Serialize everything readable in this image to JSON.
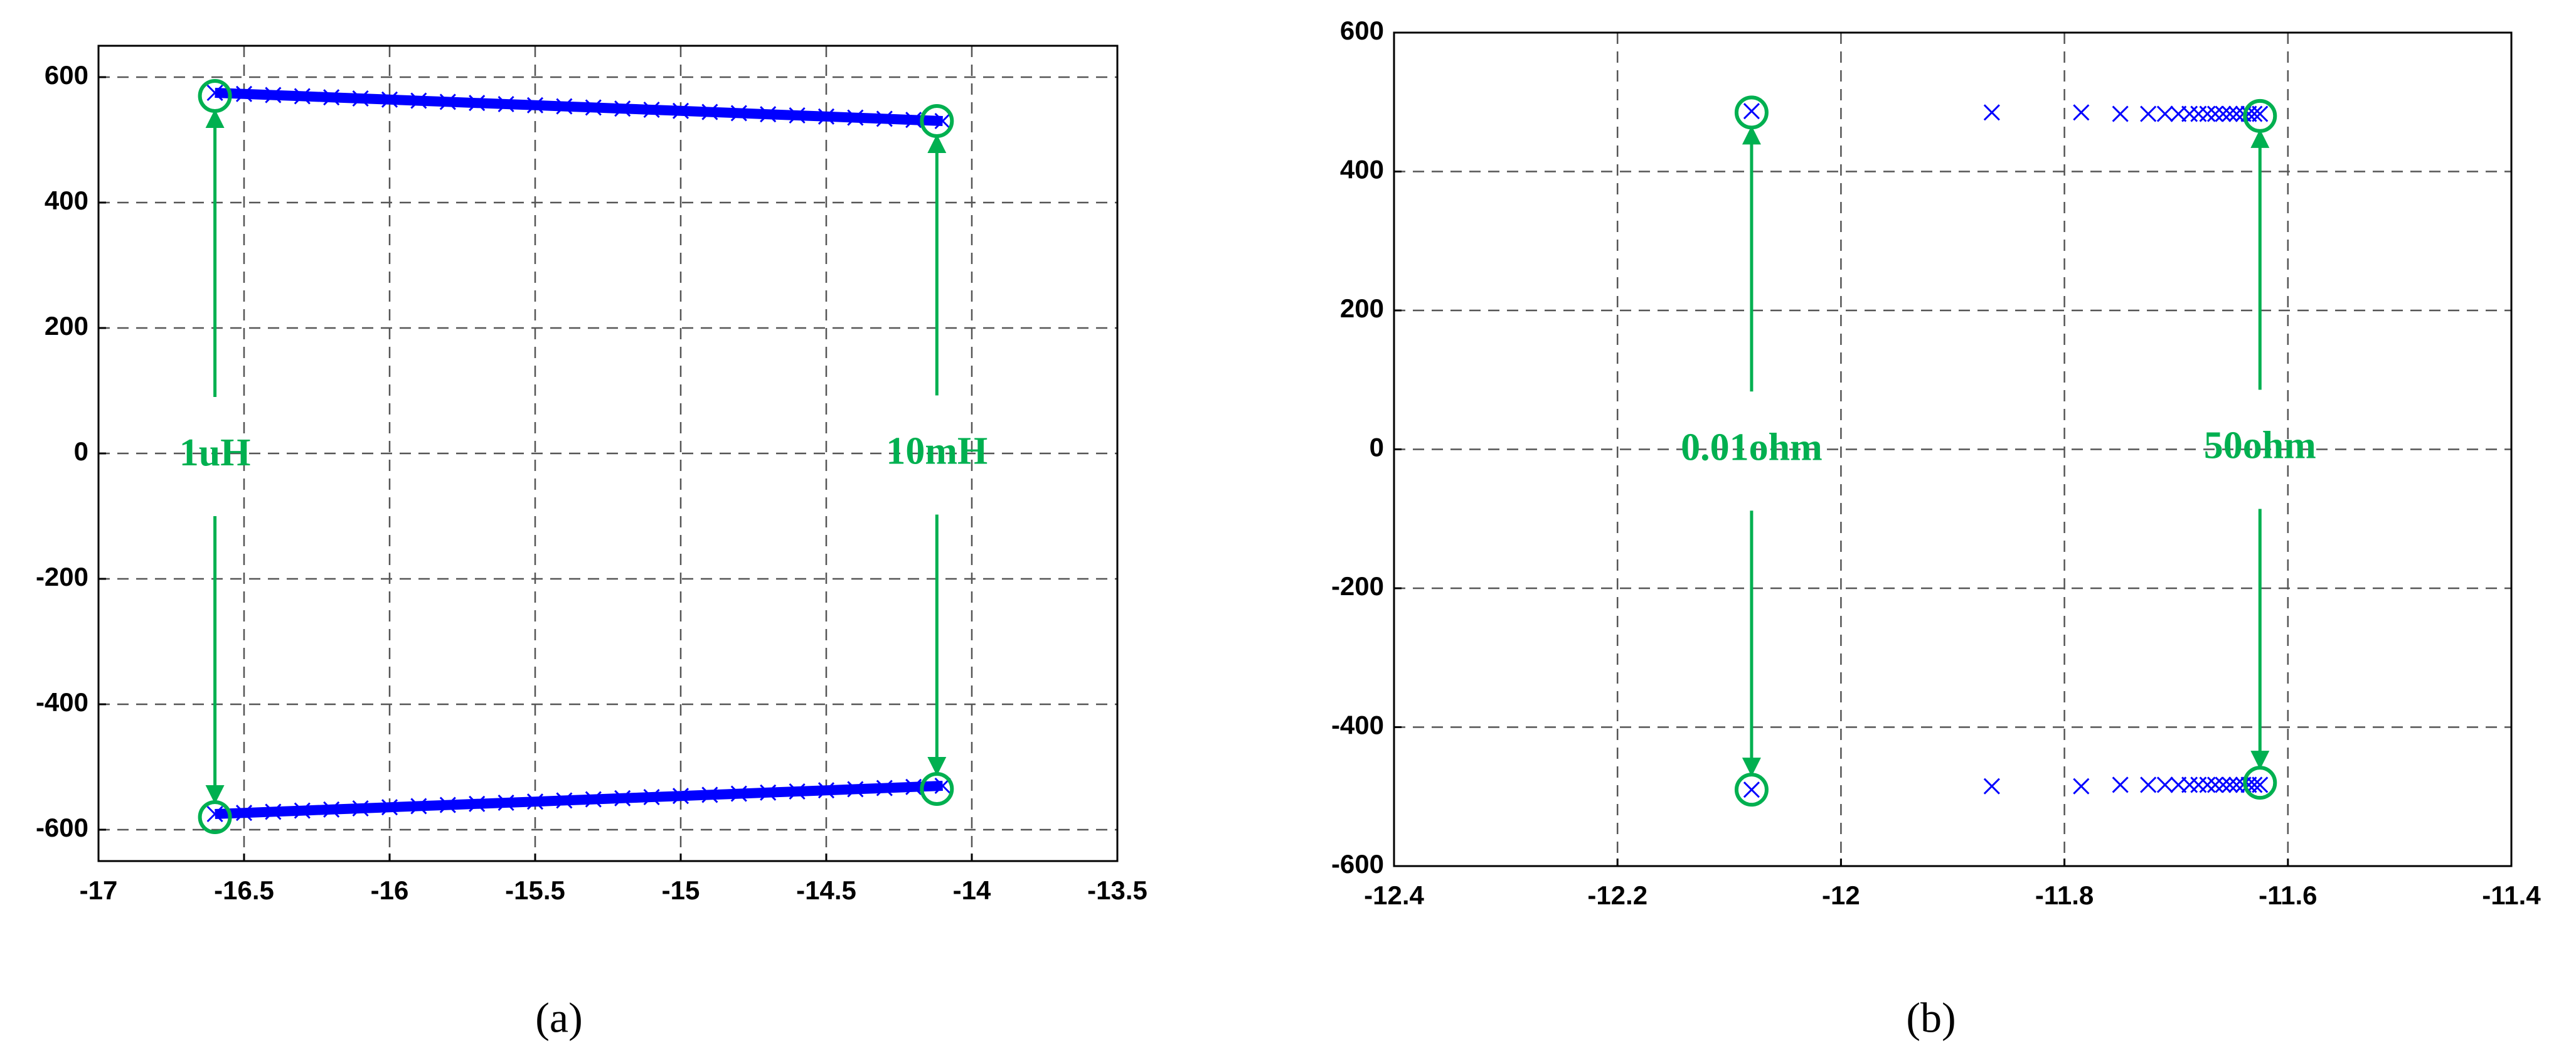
{
  "chart_data": [
    {
      "type": "scatter",
      "caption": "(a)",
      "line": true,
      "xlim": [
        -17,
        -13.5
      ],
      "xticks": [
        -17,
        -16.5,
        -16,
        -15.5,
        -15,
        -14.5,
        -14,
        -13.5
      ],
      "ylim": [
        -650,
        650
      ],
      "yticks": [
        -600,
        -400,
        -200,
        0,
        200,
        400,
        600
      ],
      "grid": true,
      "series": [
        {
          "color": "#0000ff",
          "marker": "x",
          "x": [
            -16.6,
            -16.5,
            -16.4,
            -16.3,
            -16.2,
            -16.1,
            -16.0,
            -15.9,
            -15.8,
            -15.7,
            -15.6,
            -15.5,
            -15.4,
            -15.3,
            -15.2,
            -15.1,
            -15.0,
            -14.9,
            -14.8,
            -14.7,
            -14.6,
            -14.5,
            -14.4,
            -14.3,
            -14.2,
            -14.1
          ],
          "values": [
            575,
            573.2,
            571.4,
            569.6,
            567.8,
            566,
            564.2,
            562.4,
            560.6,
            558.8,
            557,
            555.2,
            553.4,
            551.6,
            549.8,
            548,
            546.2,
            544.4,
            542.6,
            540.8,
            539,
            537.2,
            535.4,
            533.6,
            531.8,
            530
          ]
        },
        {
          "color": "#0000ff",
          "marker": "x",
          "x": [
            -16.6,
            -16.5,
            -16.4,
            -16.3,
            -16.2,
            -16.1,
            -16.0,
            -15.9,
            -15.8,
            -15.7,
            -15.6,
            -15.5,
            -15.4,
            -15.3,
            -15.2,
            -15.1,
            -15.0,
            -14.9,
            -14.8,
            -14.7,
            -14.6,
            -14.5,
            -14.4,
            -14.3,
            -14.2,
            -14.1
          ],
          "values": [
            -575,
            -573.2,
            -571.4,
            -569.6,
            -567.8,
            -566,
            -564.2,
            -562.4,
            -560.6,
            -558.8,
            -557,
            -555.2,
            -553.4,
            -551.6,
            -549.8,
            -548,
            -546.2,
            -544.4,
            -542.6,
            -540.8,
            -539,
            -537.2,
            -535.4,
            -533.6,
            -531.8,
            -530
          ]
        }
      ],
      "circles": {
        "color": "#00b050",
        "x": [
          -16.6,
          -14.12,
          -16.6,
          -14.12
        ],
        "values": [
          570,
          530,
          -580,
          -535
        ]
      },
      "annotations": [
        "1uH",
        "10mH"
      ]
    },
    {
      "type": "scatter",
      "caption": "(b)",
      "line": false,
      "xlim": [
        -12.4,
        -11.4
      ],
      "xticks": [
        -12.4,
        -12.2,
        -12,
        -11.8,
        -11.6,
        -11.4
      ],
      "ylim": [
        -600,
        600
      ],
      "yticks": [
        -600,
        -400,
        -200,
        0,
        200,
        400,
        600
      ],
      "grid": true,
      "series": [
        {
          "color": "#0000ff",
          "marker": "x",
          "x": [
            -12.08,
            -11.865,
            -11.785,
            -11.75,
            -11.725,
            -11.71,
            -11.698,
            -11.688,
            -11.68,
            -11.672,
            -11.665,
            -11.658,
            -11.652,
            -11.646,
            -11.64,
            -11.635,
            -11.63,
            -11.625
          ],
          "values": [
            487,
            485,
            485,
            483,
            483,
            483,
            483,
            483,
            483,
            483,
            483,
            483,
            483,
            483,
            483,
            483,
            483,
            483
          ]
        },
        {
          "color": "#0000ff",
          "marker": "x",
          "x": [
            -12.08,
            -11.865,
            -11.785,
            -11.75,
            -11.725,
            -11.71,
            -11.698,
            -11.688,
            -11.68,
            -11.672,
            -11.665,
            -11.658,
            -11.652,
            -11.646,
            -11.64,
            -11.635,
            -11.63,
            -11.625
          ],
          "values": [
            -490,
            -485,
            -485,
            -483,
            -483,
            -483,
            -483,
            -483,
            -483,
            -483,
            -483,
            -483,
            -483,
            -483,
            -483,
            -483,
            -483,
            -483
          ]
        }
      ],
      "circles": {
        "color": "#00b050",
        "x": [
          -12.08,
          -11.625,
          -12.08,
          -11.625
        ],
        "values": [
          485,
          480,
          -490,
          -480
        ]
      },
      "annotations": [
        "0.01ohm",
        "50ohm"
      ]
    }
  ]
}
